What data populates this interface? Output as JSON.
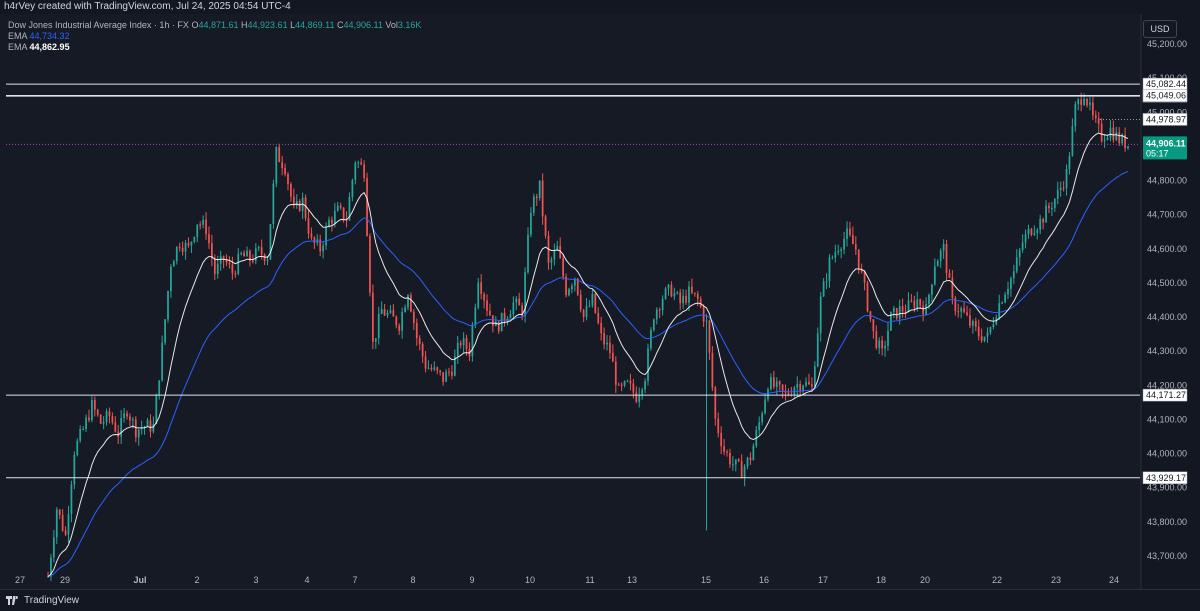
{
  "header": {
    "text": "h4rVey created with TradingView.com, Jul 24, 2025 04:54 UTC-4"
  },
  "legend": {
    "symbol": "Dow Jones Industrial Average Index · 1h · FX",
    "open_label": "O",
    "open": "44,871.61",
    "high_label": "H",
    "high": "44,923.61",
    "low_label": "L",
    "low": "44,869.11",
    "close_label": "C",
    "close": "44,906.11",
    "vol_label": "Vol",
    "vol": "3.16K",
    "ema_slow_label": "EMA",
    "ema_slow": "44,734.32",
    "ema_fast_label": "EMA",
    "ema_fast": "44,862.95"
  },
  "currency": "USD",
  "footer": {
    "brand": "TradingView"
  },
  "colors": {
    "background": "#161a25",
    "up": "#26a69a",
    "down": "#ef5350",
    "ema_slow": "#2962ff",
    "ema_fast": "#ffffff",
    "last_price": "#089981"
  },
  "chart_data": {
    "type": "candlestick",
    "title": "Dow Jones Industrial Average Index · 1h · FX",
    "ylim": [
      43650,
      45260
    ],
    "y_ticks": [
      "45,200.00",
      "45,100.00",
      "45,000.00",
      "44,900.00",
      "44,800.00",
      "44,700.00",
      "44,600.00",
      "44,500.00",
      "44,400.00",
      "44,300.00",
      "44,200.00",
      "44,100.00",
      "44,000.00",
      "43,900.00",
      "43,800.00",
      "43,700.00"
    ],
    "x_ticks": [
      "27",
      "29",
      "Jul",
      "2",
      "3",
      "4",
      "7",
      "8",
      "9",
      "10",
      "11",
      "13",
      "15",
      "16",
      "17",
      "18",
      "20",
      "22",
      "23",
      "24"
    ],
    "x_tick_labels_bold": [
      "Jul"
    ],
    "horizontal_levels": [
      {
        "value": 45082.44,
        "label": "45,082.44"
      },
      {
        "value": 45082.44,
        "label": "45,082.44"
      },
      {
        "value": 45049.06,
        "label": "45,049.06"
      },
      {
        "value": 44171.27,
        "label": "44,171.27"
      },
      {
        "value": 43929.17,
        "label": "43,929.17"
      }
    ],
    "marker_levels": [
      {
        "value": 44978.97,
        "label": "44,978.97"
      }
    ],
    "last_price": {
      "value": 44906.11,
      "label": "44,906.11",
      "countdown": "05:17"
    },
    "price_path": [
      [
        0,
        43640
      ],
      [
        1,
        43840
      ],
      [
        2,
        43760
      ],
      [
        3,
        44010
      ],
      [
        4,
        44070
      ],
      [
        5,
        44140
      ],
      [
        6,
        44090
      ],
      [
        7,
        44110
      ],
      [
        8,
        44060
      ],
      [
        9,
        44130
      ],
      [
        10,
        44070
      ],
      [
        11,
        44080
      ],
      [
        12,
        44080
      ],
      [
        13,
        44310
      ],
      [
        14,
        44560
      ],
      [
        15,
        44620
      ],
      [
        16,
        44600
      ],
      [
        17,
        44680
      ],
      [
        18,
        44660
      ],
      [
        19,
        44530
      ],
      [
        20,
        44570
      ],
      [
        21,
        44530
      ],
      [
        22,
        44580
      ],
      [
        23,
        44570
      ],
      [
        24,
        44590
      ],
      [
        25,
        44580
      ],
      [
        26,
        44880
      ],
      [
        27,
        44840
      ],
      [
        28,
        44710
      ],
      [
        29,
        44740
      ],
      [
        30,
        44620
      ],
      [
        31,
        44600
      ],
      [
        32,
        44680
      ],
      [
        33,
        44710
      ],
      [
        34,
        44690
      ],
      [
        35,
        44860
      ],
      [
        36,
        44830
      ],
      [
        37,
        44320
      ],
      [
        38,
        44420
      ],
      [
        39,
        44400
      ],
      [
        40,
        44380
      ],
      [
        41,
        44480
      ],
      [
        42,
        44340
      ],
      [
        43,
        44260
      ],
      [
        44,
        44240
      ],
      [
        45,
        44220
      ],
      [
        46,
        44250
      ],
      [
        47,
        44330
      ],
      [
        48,
        44300
      ],
      [
        49,
        44520
      ],
      [
        50,
        44430
      ],
      [
        51,
        44370
      ],
      [
        52,
        44400
      ],
      [
        53,
        44440
      ],
      [
        54,
        44420
      ],
      [
        55,
        44720
      ],
      [
        56,
        44780
      ],
      [
        57,
        44550
      ],
      [
        58,
        44600
      ],
      [
        59,
        44480
      ],
      [
        60,
        44520
      ],
      [
        61,
        44400
      ],
      [
        62,
        44450
      ],
      [
        63,
        44340
      ],
      [
        64,
        44300
      ],
      [
        65,
        44180
      ],
      [
        66,
        44200
      ],
      [
        67,
        44170
      ],
      [
        68,
        44230
      ],
      [
        69,
        44410
      ],
      [
        70,
        44460
      ],
      [
        71,
        44480
      ],
      [
        72,
        44440
      ],
      [
        73,
        44470
      ],
      [
        74,
        44450
      ],
      [
        75,
        44380
      ],
      [
        76,
        44100
      ],
      [
        77,
        44010
      ],
      [
        78,
        43970
      ],
      [
        79,
        43950
      ],
      [
        80,
        43990
      ],
      [
        81,
        44090
      ],
      [
        82,
        44210
      ],
      [
        83,
        44190
      ],
      [
        84,
        44170
      ],
      [
        85,
        44200
      ],
      [
        86,
        44210
      ],
      [
        87,
        44190
      ],
      [
        88,
        44450
      ],
      [
        89,
        44560
      ],
      [
        90,
        44610
      ],
      [
        91,
        44640
      ],
      [
        92,
        44600
      ],
      [
        93,
        44480
      ],
      [
        94,
        44350
      ],
      [
        95,
        44290
      ],
      [
        96,
        44400
      ],
      [
        97,
        44420
      ],
      [
        98,
        44430
      ],
      [
        99,
        44450
      ],
      [
        100,
        44420
      ],
      [
        101,
        44560
      ],
      [
        102,
        44600
      ],
      [
        103,
        44440
      ],
      [
        104,
        44420
      ],
      [
        105,
        44380
      ],
      [
        106,
        44350
      ],
      [
        107,
        44340
      ],
      [
        108,
        44420
      ],
      [
        109,
        44480
      ],
      [
        110,
        44530
      ],
      [
        111,
        44620
      ],
      [
        112,
        44660
      ],
      [
        113,
        44680
      ],
      [
        114,
        44720
      ],
      [
        115,
        44760
      ],
      [
        116,
        44820
      ],
      [
        117,
        45010
      ],
      [
        118,
        45060
      ],
      [
        119,
        44980
      ],
      [
        120,
        44930
      ],
      [
        121,
        44950
      ],
      [
        122,
        44920
      ],
      [
        123,
        44906
      ]
    ]
  }
}
